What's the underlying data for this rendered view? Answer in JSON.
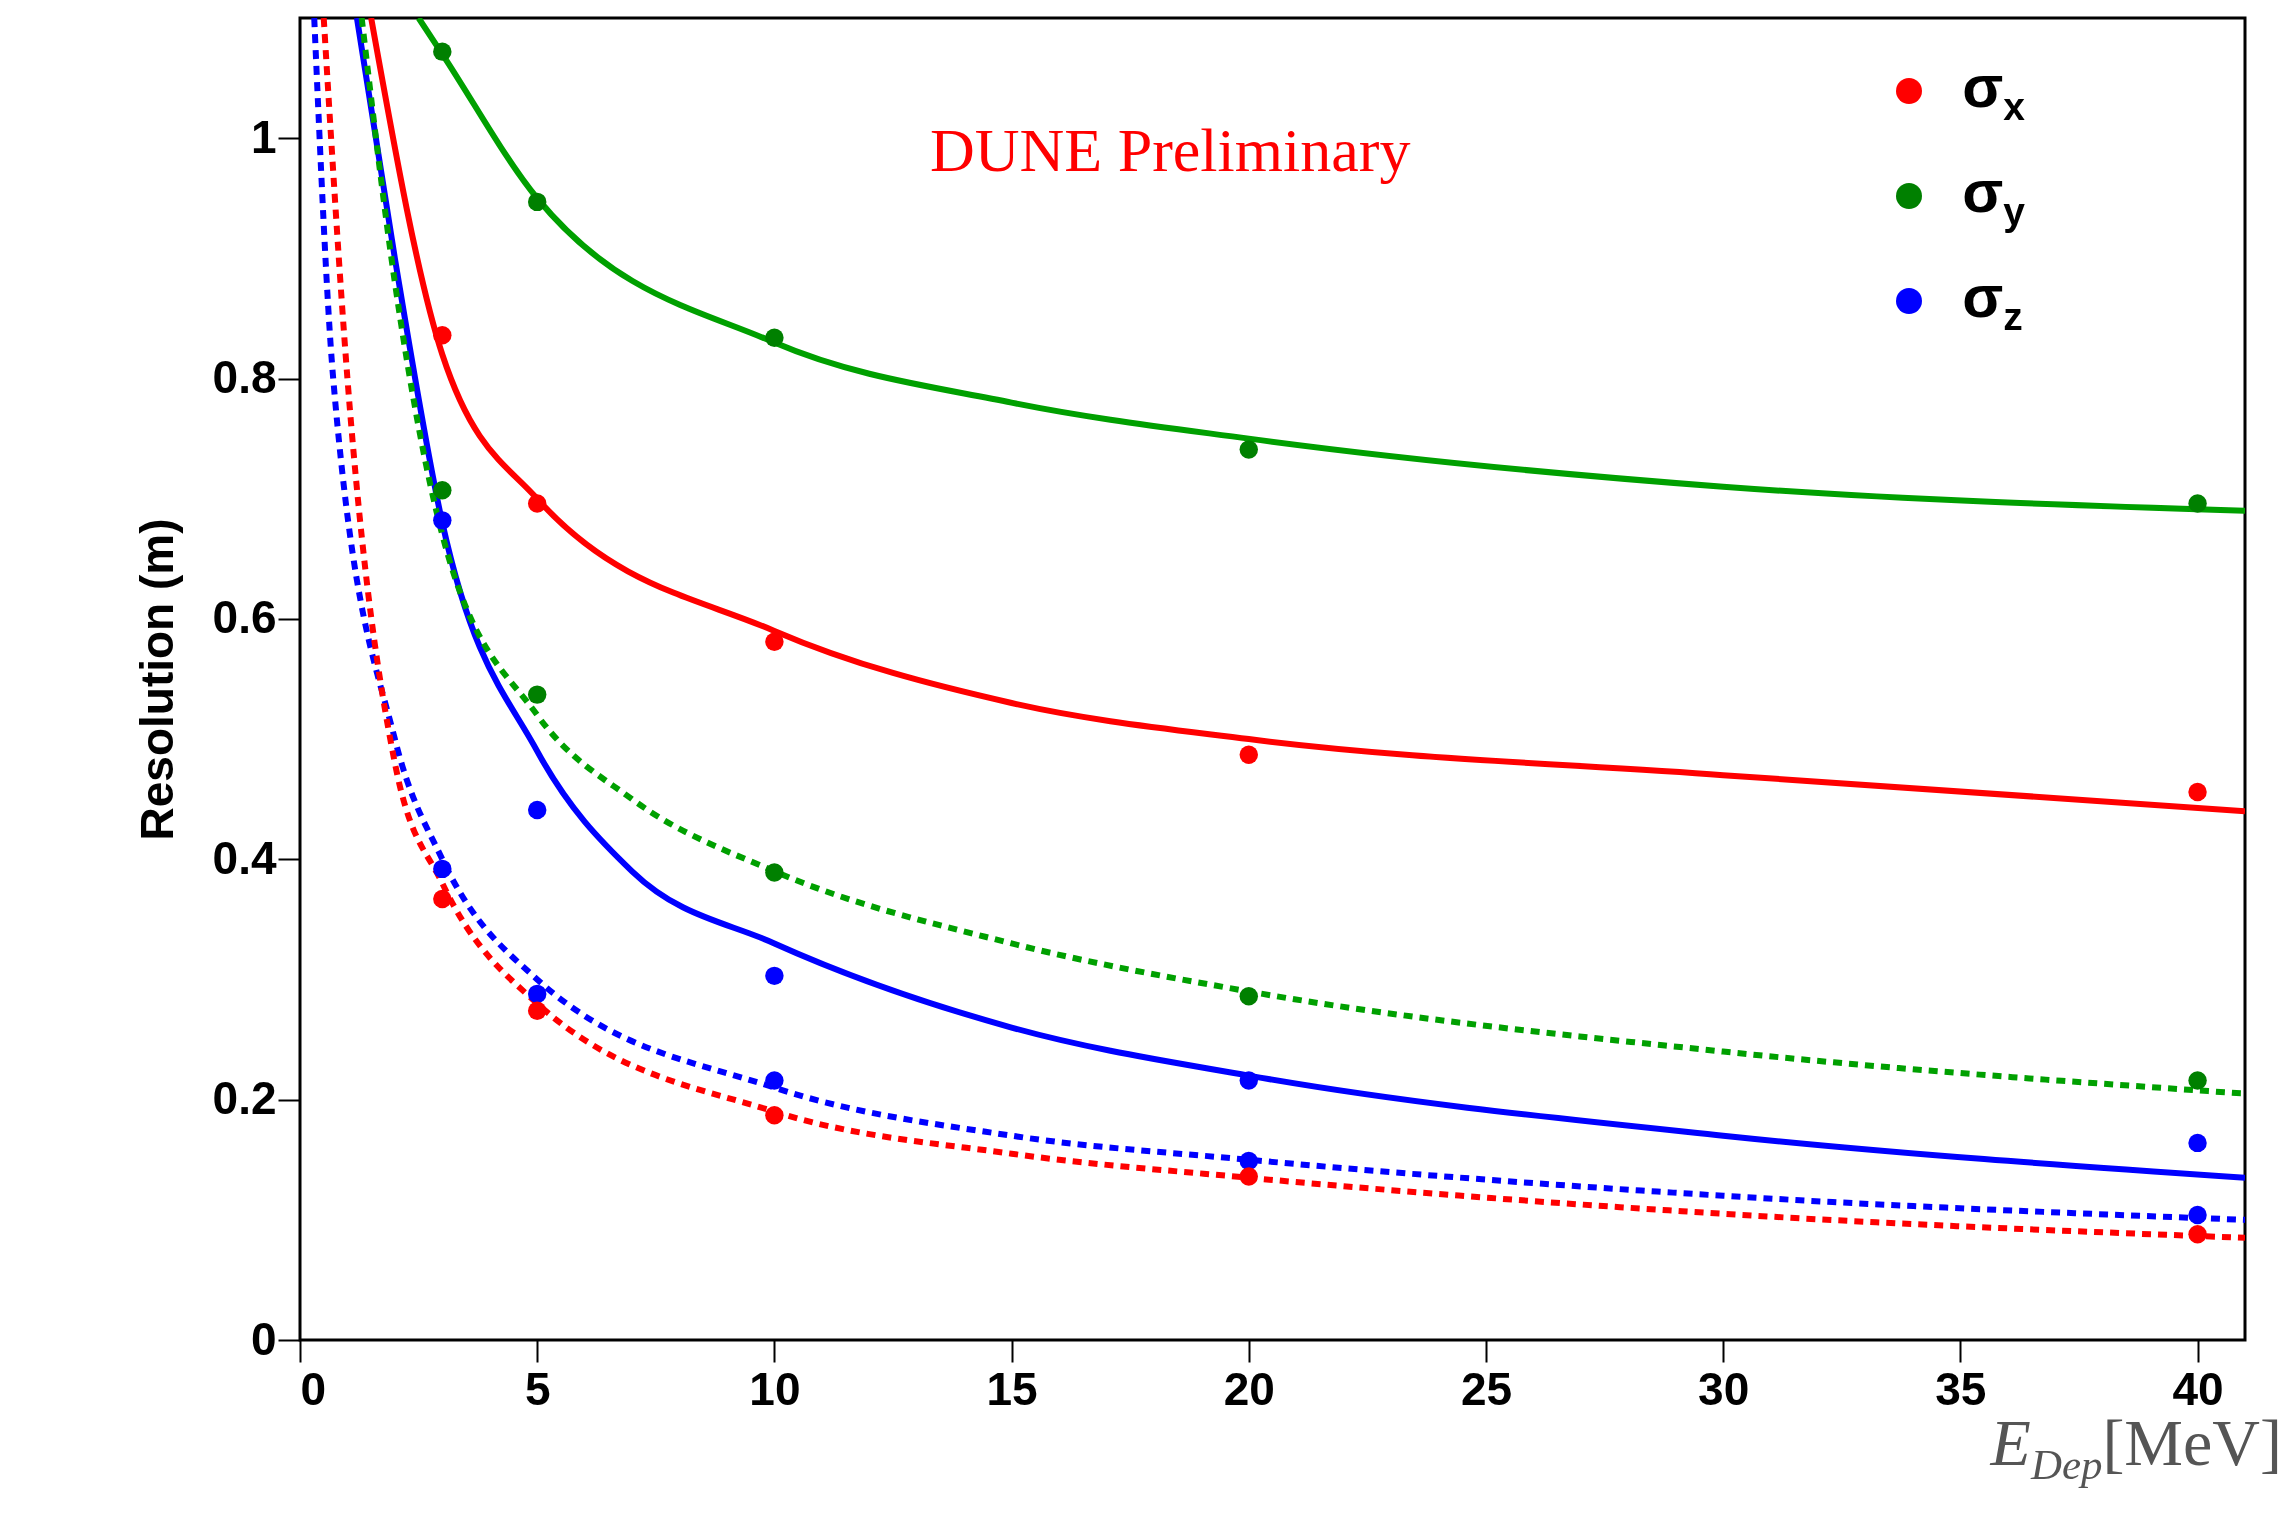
{
  "chart_data": {
    "type": "scatter",
    "ylabel": "Resolution (m)",
    "xlabel": "E$_{Dep}$[MeV]",
    "annotations": [
      "DUNE Preliminary"
    ],
    "xlim": [
      0,
      41
    ],
    "ylim": [
      0,
      1.1
    ],
    "xticks": [
      0,
      5,
      10,
      15,
      20,
      25,
      30,
      35,
      40
    ],
    "yticks": [
      0,
      0.2,
      0.4,
      0.6,
      0.8,
      1
    ],
    "grid": false,
    "legend": "top right",
    "series": [
      {
        "type": "line",
        "color": "#00a000",
        "line_style": "solid",
        "x": [
          2.5,
          3,
          5,
          10,
          15,
          20,
          30,
          41
        ],
        "values": [
          1.1,
          1.07,
          0.95,
          0.83,
          0.78,
          0.75,
          0.71,
          0.69
        ]
      },
      {
        "type": "line",
        "color": "#ff0000",
        "line_style": "solid",
        "x": [
          1.5,
          3,
          5,
          10,
          15,
          20,
          30,
          41
        ],
        "values": [
          1.1,
          0.82,
          0.7,
          0.59,
          0.53,
          0.5,
          0.47,
          0.44
        ]
      },
      {
        "type": "line",
        "color": "#0000ff",
        "line_style": "solid",
        "x": [
          1.2,
          2,
          3,
          5,
          7,
          10,
          15,
          20,
          30,
          41
        ],
        "values": [
          1.1,
          0.9,
          0.68,
          0.49,
          0.39,
          0.33,
          0.26,
          0.22,
          0.17,
          0.135
        ]
      },
      {
        "type": "line",
        "color": "#00a000",
        "line_style": "dotted",
        "x": [
          1.3,
          2,
          3,
          5,
          7,
          10,
          15,
          20,
          30,
          41
        ],
        "values": [
          1.1,
          0.88,
          0.67,
          0.52,
          0.45,
          0.39,
          0.33,
          0.29,
          0.24,
          0.205
        ]
      },
      {
        "type": "line",
        "color": "#0000ff",
        "line_style": "dotted",
        "x": [
          0.3,
          0.7,
          2,
          3,
          5,
          10,
          15,
          20,
          30,
          41
        ],
        "values": [
          1.1,
          0.8,
          0.5,
          0.4,
          0.3,
          0.21,
          0.17,
          0.15,
          0.12,
          0.1
        ]
      },
      {
        "type": "line",
        "color": "#ff0000",
        "line_style": "dotted",
        "x": [
          0.5,
          1,
          2,
          3,
          5,
          10,
          15,
          20,
          30,
          41
        ],
        "values": [
          1.1,
          0.8,
          0.48,
          0.38,
          0.28,
          0.19,
          0.155,
          0.135,
          0.105,
          0.085
        ]
      },
      {
        "name": "σ$_{x}$",
        "color": "#ff0000",
        "marker": "circle",
        "x": [
          3,
          5,
          10,
          20,
          40
        ],
        "values": [
          0.836,
          0.696,
          0.581,
          0.487,
          0.456
        ]
      },
      {
        "name": "σ$_{y}$",
        "color": "#008000",
        "marker": "circle",
        "x": [
          3,
          5,
          10,
          20,
          40
        ],
        "values": [
          1.072,
          0.947,
          0.834,
          0.741,
          0.696
        ]
      },
      {
        "name": "σ$_{z}$",
        "color": "#0000ff",
        "marker": "circle",
        "x": [
          3,
          5,
          10,
          20,
          40
        ],
        "values": [
          0.682,
          0.441,
          0.303,
          0.216,
          0.164
        ]
      },
      {
        "color": "#008000",
        "x": [
          3,
          5,
          10,
          20,
          40
        ],
        "values": [
          0.707,
          0.537,
          0.389,
          0.286,
          0.216
        ]
      },
      {
        "color": "#0000ff",
        "x": [
          3,
          5,
          10,
          20,
          40
        ],
        "values": [
          0.392,
          0.288,
          0.216,
          0.149,
          0.104
        ]
      },
      {
        "color": "#ff0000",
        "x": [
          3,
          5,
          10,
          20,
          40
        ],
        "values": [
          0.367,
          0.274,
          0.187,
          0.136,
          0.088
        ]
      }
    ]
  }
}
